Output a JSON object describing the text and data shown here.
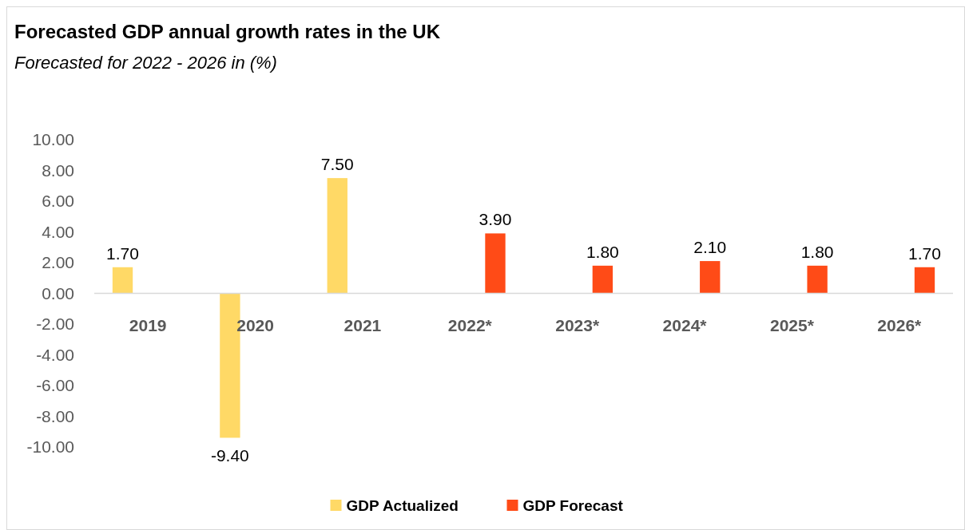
{
  "chart_data": {
    "type": "bar",
    "title": "Forecasted GDP annual growth rates in the UK",
    "subtitle": "Forecasted for 2022 - 2026 in (%)",
    "categories": [
      "2019",
      "2020",
      "2021",
      "2022*",
      "2023*",
      "2024*",
      "2025*",
      "2026*"
    ],
    "series": [
      {
        "name": "GDP Actualized",
        "color": "#ffd966",
        "values": [
          1.7,
          -9.4,
          7.5,
          null,
          null,
          null,
          null,
          null
        ],
        "value_labels": [
          "1.70",
          "-9.40",
          "7.50",
          null,
          null,
          null,
          null,
          null
        ]
      },
      {
        "name": "GDP Forecast",
        "color": "#ff4b17",
        "values": [
          null,
          null,
          null,
          3.9,
          1.8,
          2.1,
          1.8,
          1.7
        ],
        "value_labels": [
          null,
          null,
          null,
          "3.90",
          "1.80",
          "2.10",
          "1.80",
          "1.70"
        ]
      }
    ],
    "ylim": [
      -10,
      10
    ],
    "yticks": [
      {
        "value": -10,
        "label": "-10.00"
      },
      {
        "value": -8,
        "label": "-8.00"
      },
      {
        "value": -6,
        "label": "-6.00"
      },
      {
        "value": -4,
        "label": "-4.00"
      },
      {
        "value": -2,
        "label": "-2.00"
      },
      {
        "value": 0,
        "label": "0.00"
      },
      {
        "value": 2,
        "label": "2.00"
      },
      {
        "value": 4,
        "label": "4.00"
      },
      {
        "value": 6,
        "label": "6.00"
      },
      {
        "value": 8,
        "label": "8.00"
      },
      {
        "value": 10,
        "label": "10.00"
      }
    ],
    "grid": false,
    "legend": "bottom"
  }
}
